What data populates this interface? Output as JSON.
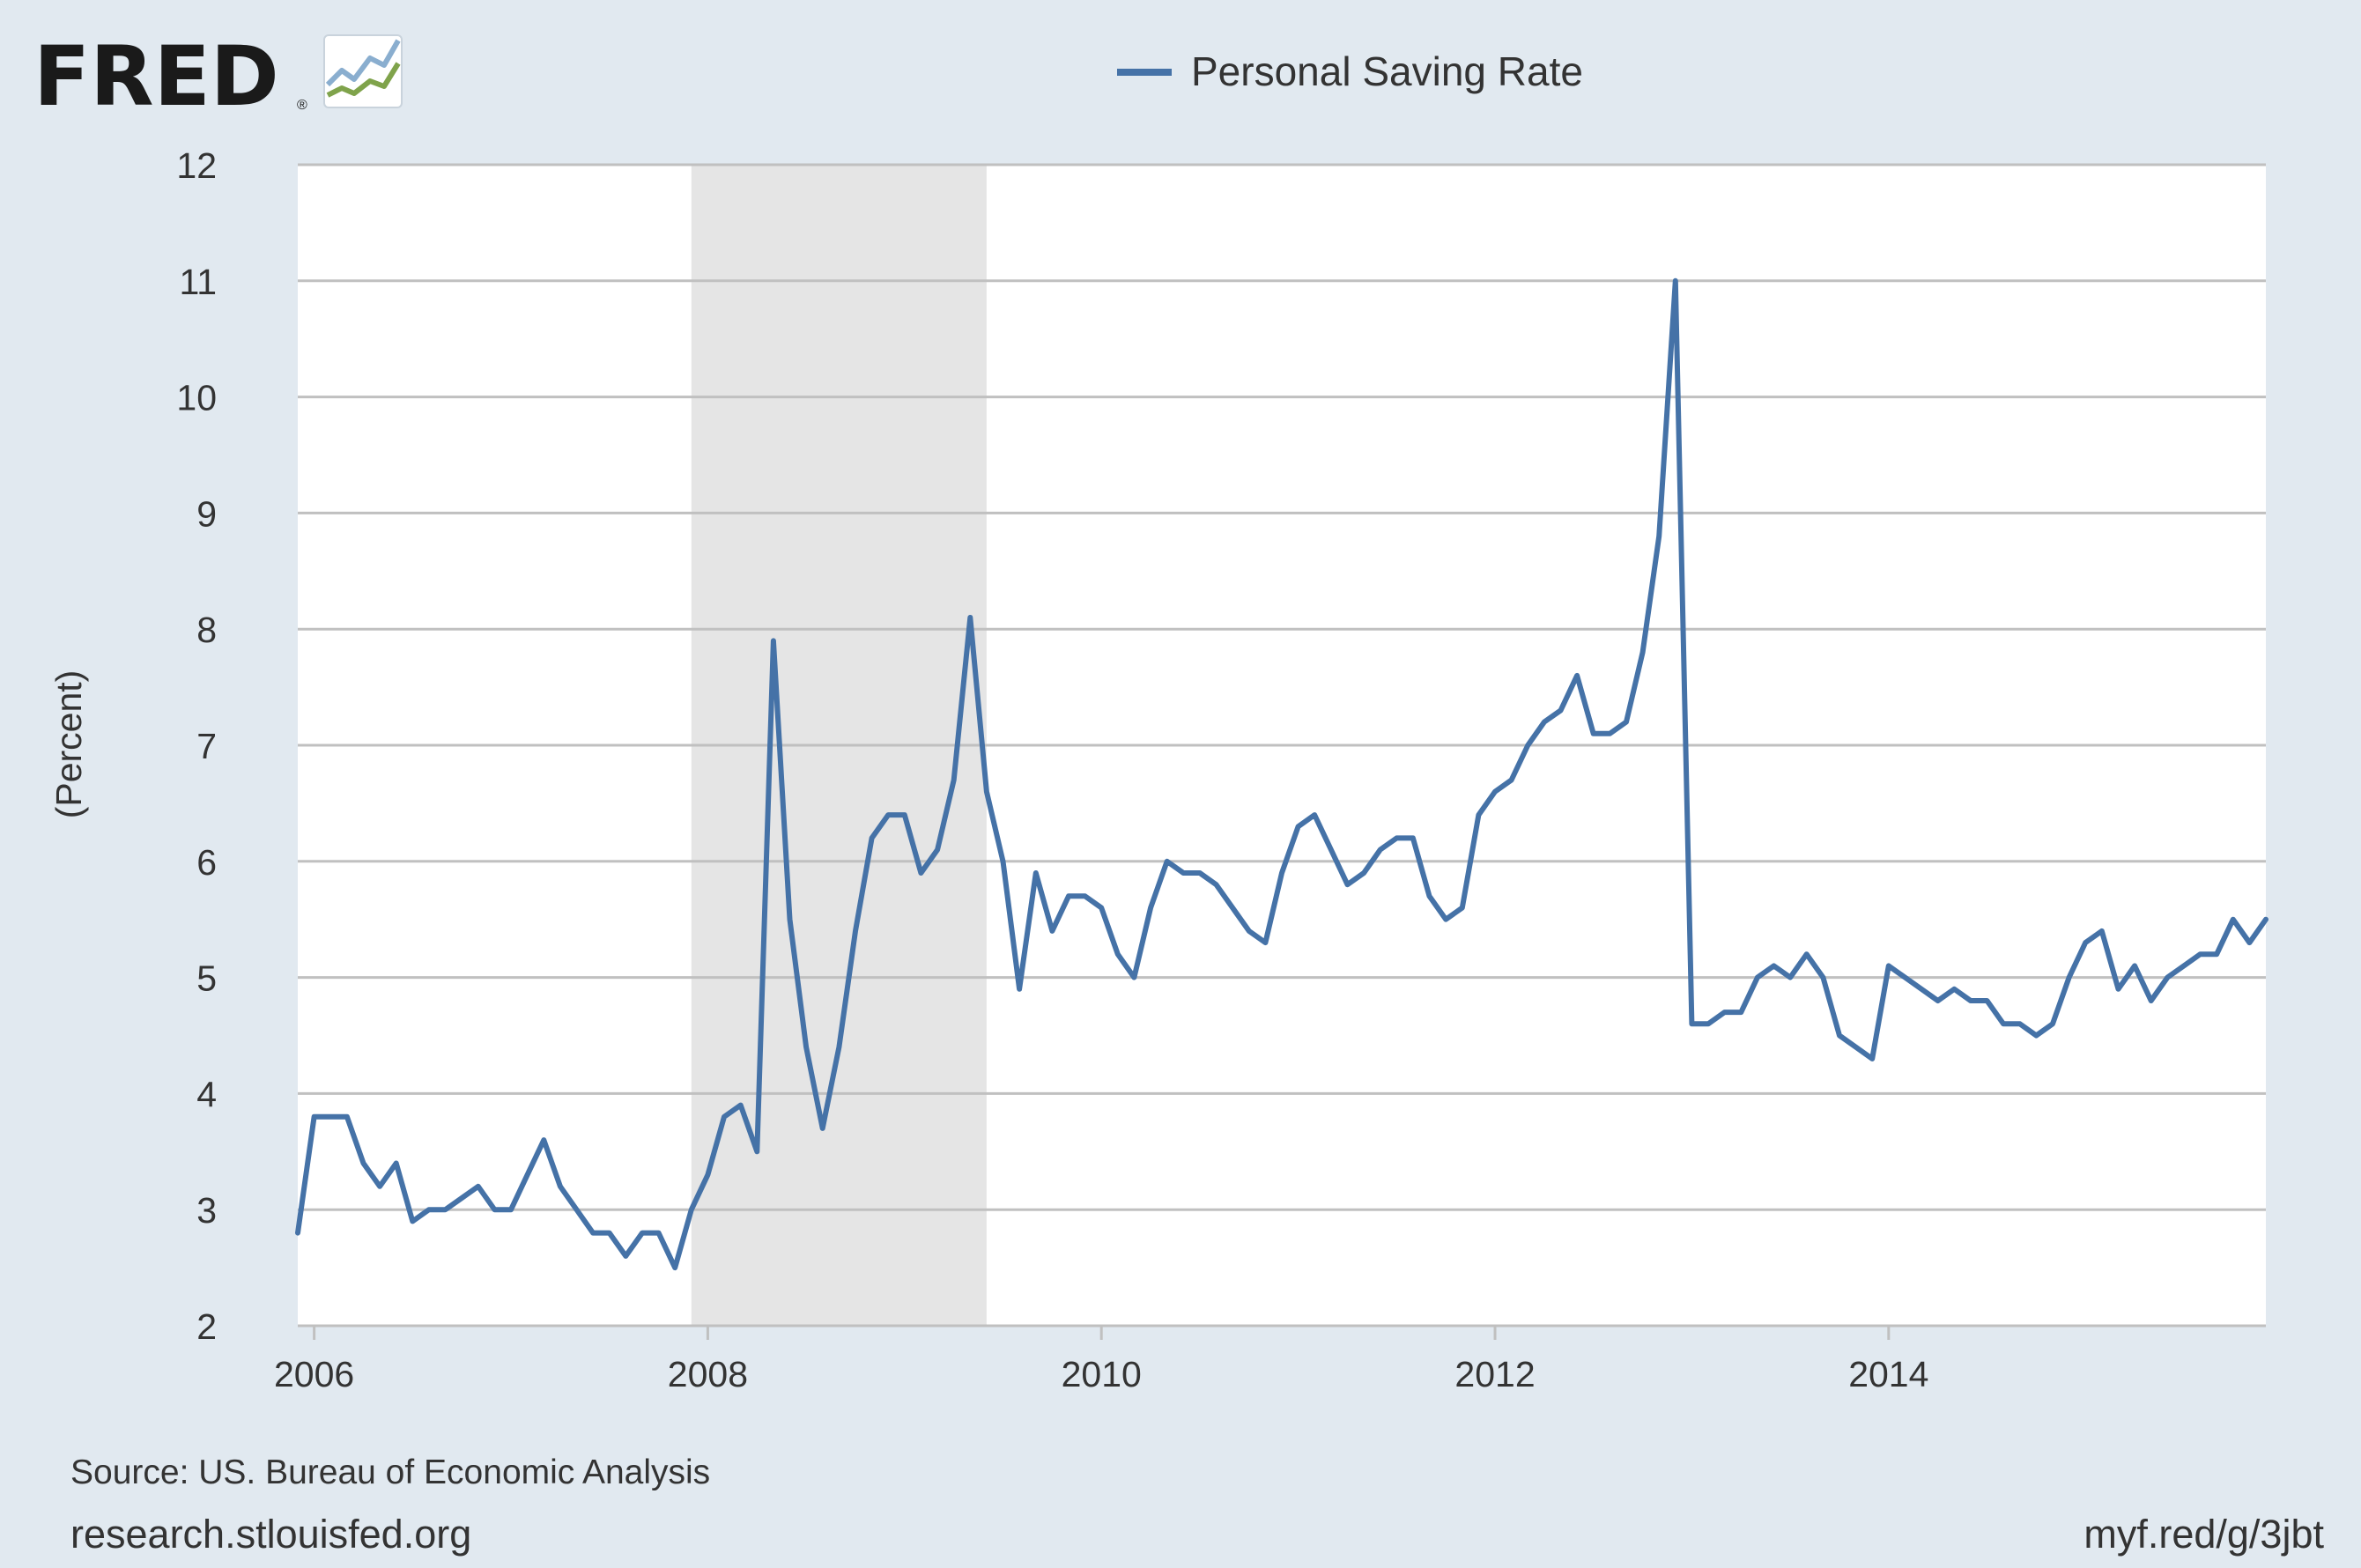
{
  "branding": {
    "logo_text": "FRED",
    "logo_mark": "®",
    "logo_icon": "line-chart-icon"
  },
  "colors": {
    "background": "#e1e9f0",
    "plot_background": "#ffffff",
    "series": "#4572a7",
    "recession": "#e5e5e5",
    "grid": "#c0c0c0",
    "logo_blue_line": "#8aaecf",
    "logo_green_line": "#7fa34b"
  },
  "chart_data": {
    "type": "line",
    "title": "",
    "xlabel": "",
    "ylabel": "(Percent)",
    "ylim": [
      2,
      12
    ],
    "xlim": [
      "2005-12",
      "2015-12"
    ],
    "y_ticks": [
      "2",
      "3",
      "4",
      "5",
      "6",
      "7",
      "8",
      "9",
      "10",
      "11",
      "12"
    ],
    "x_ticks": [
      "2006",
      "2008",
      "2010",
      "2012",
      "2014"
    ],
    "grid": true,
    "legend": {
      "placement": "top-center",
      "entries": [
        "Personal Saving Rate"
      ]
    },
    "recession_shading": [
      {
        "start": "2007-12",
        "end": "2009-06"
      }
    ],
    "series": [
      {
        "name": "Personal Saving Rate",
        "frequency": "monthly",
        "start": "2005-12",
        "values": [
          2.8,
          3.8,
          3.8,
          3.8,
          3.4,
          3.2,
          3.4,
          2.9,
          3.0,
          3.0,
          3.1,
          3.2,
          3.0,
          3.0,
          3.3,
          3.6,
          3.2,
          3.0,
          2.8,
          2.8,
          2.6,
          2.8,
          2.8,
          2.5,
          3.0,
          3.3,
          3.8,
          3.9,
          3.5,
          7.9,
          5.5,
          4.4,
          3.7,
          4.4,
          5.4,
          6.2,
          6.4,
          6.4,
          5.9,
          6.1,
          6.7,
          8.1,
          6.6,
          6.0,
          4.9,
          5.9,
          5.4,
          5.7,
          5.7,
          5.6,
          5.2,
          5.0,
          5.6,
          6.0,
          5.9,
          5.9,
          5.8,
          5.6,
          5.4,
          5.3,
          5.9,
          6.3,
          6.4,
          6.1,
          5.8,
          5.9,
          6.1,
          6.2,
          6.2,
          5.7,
          5.5,
          5.6,
          6.4,
          6.6,
          6.7,
          7.0,
          7.2,
          7.3,
          7.6,
          7.1,
          7.1,
          7.2,
          7.8,
          8.8,
          11.0,
          4.6,
          4.6,
          4.7,
          4.7,
          5.0,
          5.1,
          5.0,
          5.2,
          5.0,
          4.5,
          4.4,
          4.3,
          5.1,
          5.0,
          4.9,
          4.8,
          4.9,
          4.8,
          4.8,
          4.6,
          4.6,
          4.5,
          4.6,
          5.0,
          5.3,
          5.4,
          4.9,
          5.1,
          4.8,
          5.0,
          5.1,
          5.2,
          5.2,
          5.5,
          5.3,
          5.5
        ]
      }
    ]
  },
  "footer": {
    "source": "Source: US. Bureau of Economic Analysis",
    "site": "research.stlouisfed.org",
    "short_link": "myf.red/g/3jbt"
  }
}
